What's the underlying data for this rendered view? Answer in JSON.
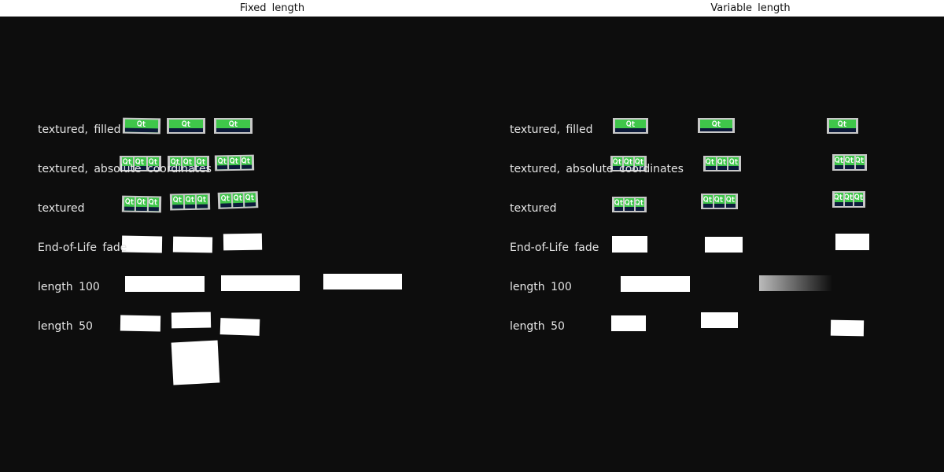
{
  "headers": {
    "left": "Fixed length",
    "right": "Variable length"
  },
  "rows": [
    {
      "label": "textured, filled"
    },
    {
      "label": "textured, absolute coordinates"
    },
    {
      "label": "textured"
    },
    {
      "label": "End-of-Life fade"
    },
    {
      "label": "length 100"
    },
    {
      "label": "length 50"
    }
  ],
  "logo_text": "Qt",
  "colors": {
    "background": "#0d0d0d",
    "header": "#ffffff",
    "logo_green": "#3fc64a",
    "logo_navy": "#0c1a3a",
    "trail": "#ffffff"
  }
}
